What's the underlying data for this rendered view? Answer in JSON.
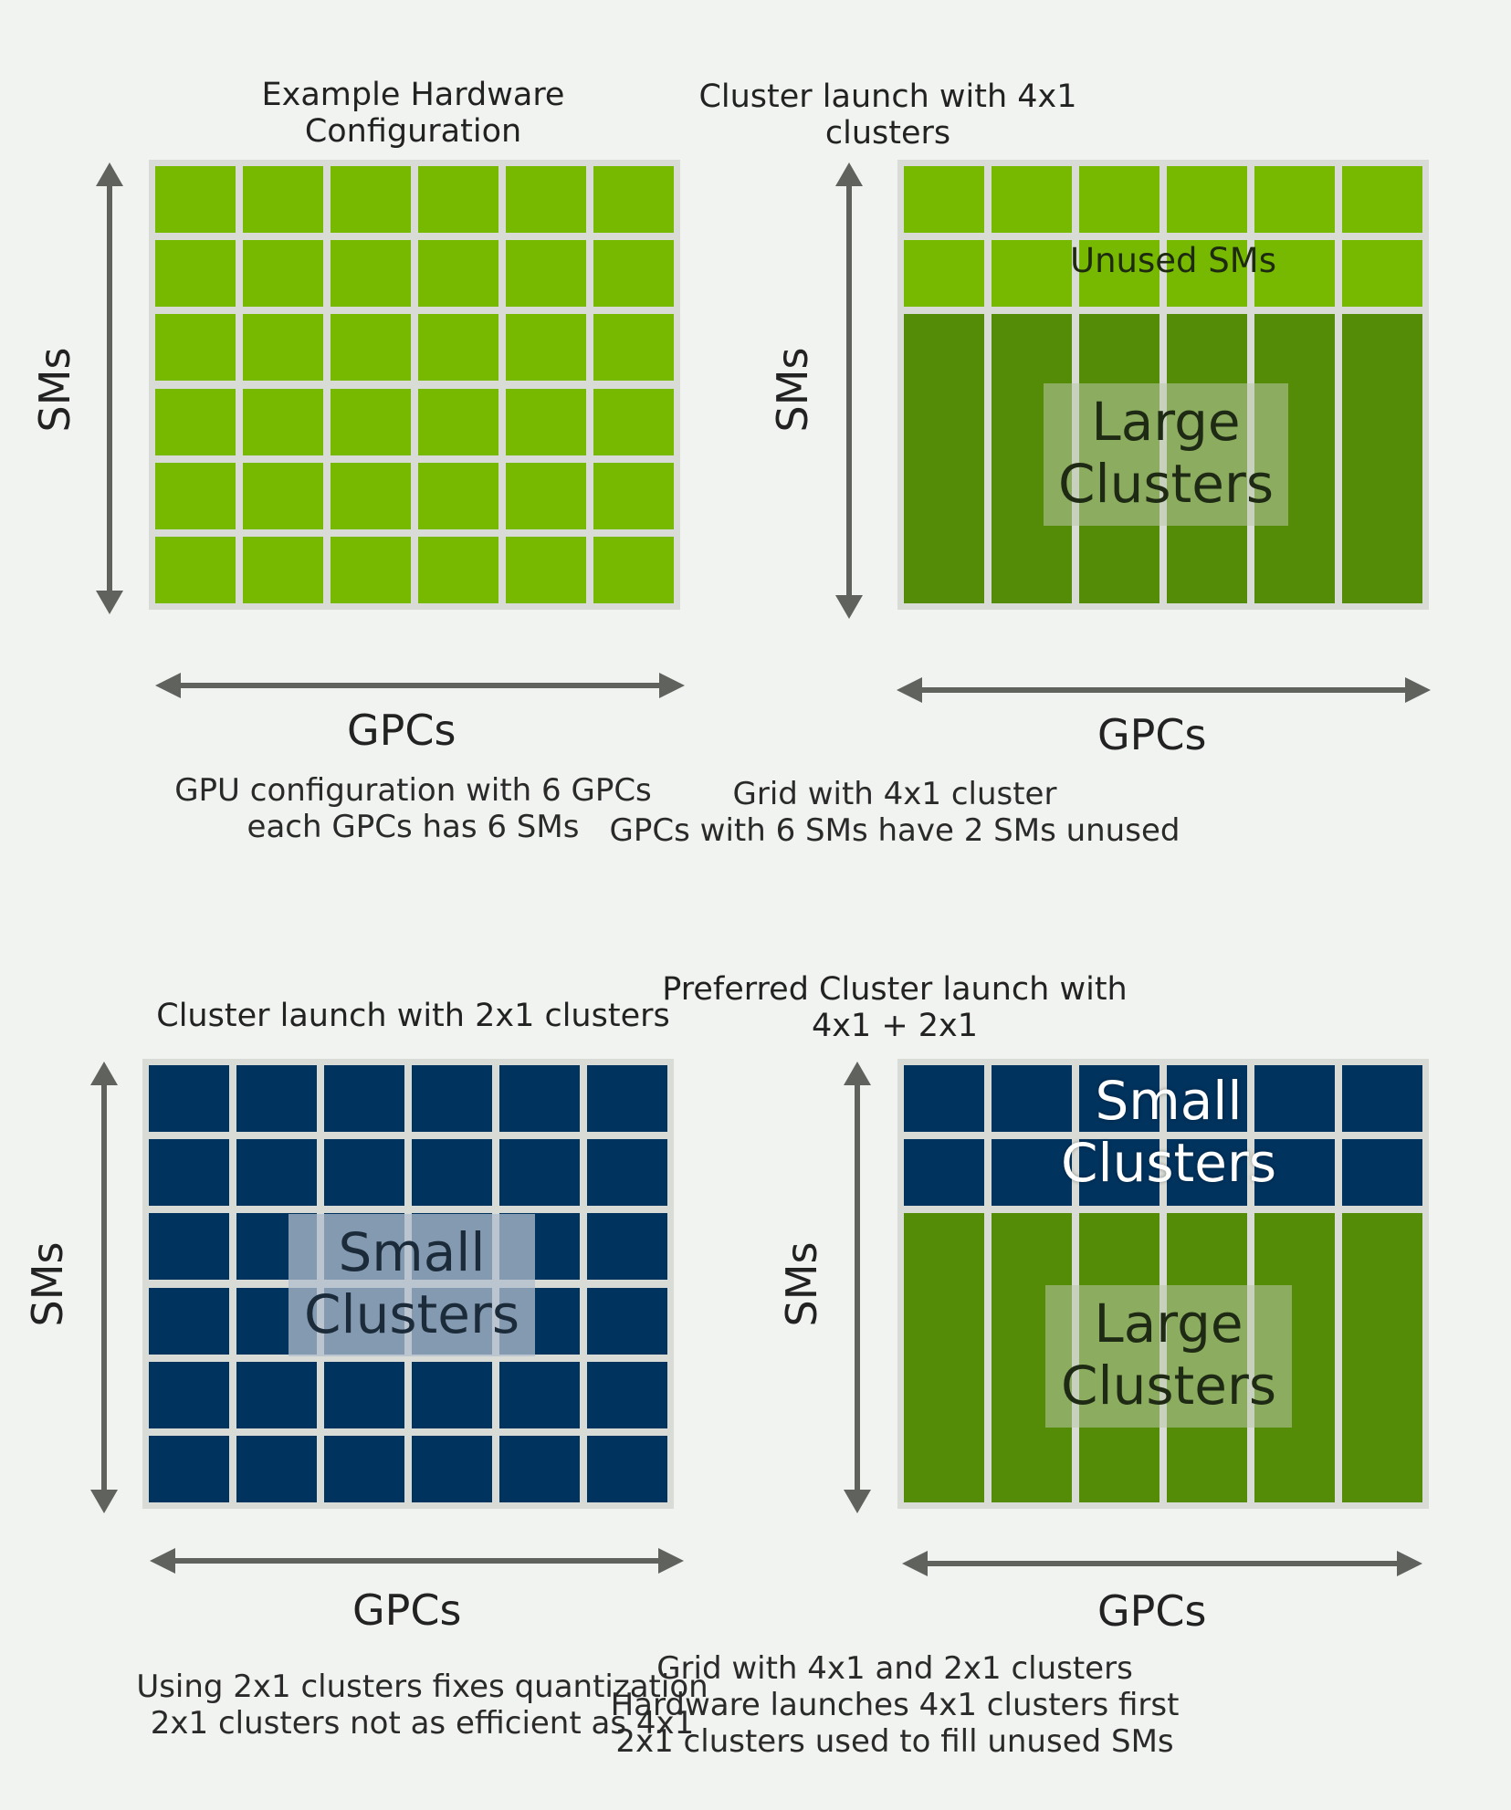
{
  "panels": [
    {
      "title": [
        "Example Hardware",
        "Configuration"
      ],
      "x_axis": "GPCs",
      "y_axis": "SMs",
      "caption": [
        "GPU configuration with 6 GPCs",
        "each GPCs has 6 SMs"
      ]
    },
    {
      "title": [
        "Cluster launch with 4x1",
        "clusters"
      ],
      "x_axis": "GPCs",
      "y_axis": "SMs",
      "unused_label": "Unused SMs",
      "overlay_label": [
        "Large",
        "Clusters"
      ],
      "caption": [
        "Grid with 4x1 cluster",
        "GPCs with 6 SMs have 2 SMs unused"
      ]
    },
    {
      "title": [
        "Cluster launch with 2x1 clusters"
      ],
      "x_axis": "GPCs",
      "y_axis": "SMs",
      "overlay_label": [
        "Small",
        "Clusters"
      ],
      "caption": [
        "Using 2x1 clusters fixes quantization",
        "2x1 clusters not as efficient as 4x1"
      ]
    },
    {
      "title": [
        "Preferred  Cluster launch with",
        "4x1 + 2x1"
      ],
      "x_axis": "GPCs",
      "y_axis": "SMs",
      "small_label": [
        "Small",
        "Clusters"
      ],
      "overlay_label": [
        "Large",
        "Clusters"
      ],
      "caption": [
        "Grid with 4x1 and 2x1 clusters",
        "Hardware launches 4x1 clusters first",
        "2x1 clusters used to fill unused SMs"
      ]
    }
  ],
  "colors": {
    "sm_green": "#76b900",
    "cluster_green": "#548c08",
    "cluster_navy": "#00335e",
    "axis_gray": "#5f625d"
  }
}
